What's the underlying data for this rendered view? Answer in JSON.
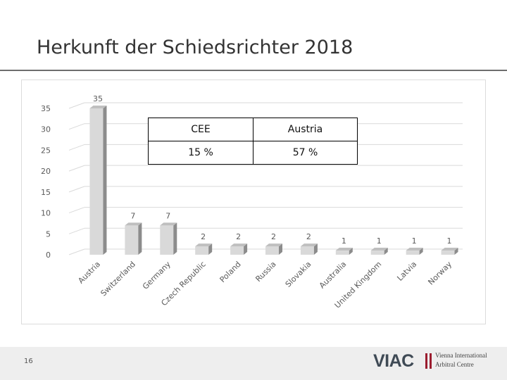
{
  "slide": {
    "title": "Herkunft der Schiedsrichter 2018",
    "page_number": "16"
  },
  "summary_table": {
    "headers": [
      "CEE",
      "Austria"
    ],
    "values": [
      "15 %",
      "57 %"
    ]
  },
  "logo": {
    "mark": "VIAC",
    "line1": "Vienna International",
    "line2": "Arbitral Centre"
  },
  "colors": {
    "bar_front": "#d9d9d9",
    "bar_side": "#8c8c8c",
    "bar_top": "#bfbfbf",
    "gridline": "#d9d9d9"
  },
  "chart_data": {
    "type": "bar",
    "title": "",
    "xlabel": "",
    "ylabel": "",
    "categories": [
      "Austria",
      "Switzerland",
      "Germany",
      "Czech Republic",
      "Poland",
      "Russia",
      "Slovakia",
      "Australia",
      "United Kingdom",
      "Latvia",
      "Norway"
    ],
    "values": [
      35,
      7,
      7,
      2,
      2,
      2,
      2,
      1,
      1,
      1,
      1
    ],
    "yticks": [
      0,
      5,
      10,
      15,
      20,
      25,
      30,
      35
    ],
    "ylim": [
      0,
      35
    ],
    "grid": true,
    "legend": "none"
  }
}
